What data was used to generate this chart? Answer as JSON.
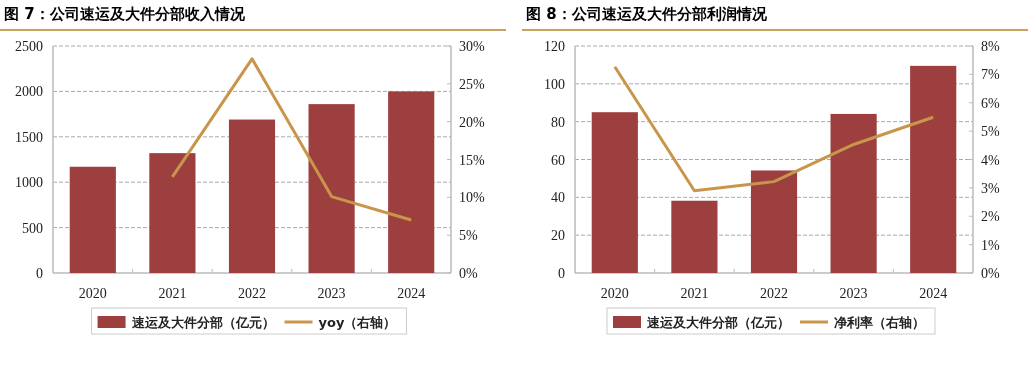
{
  "chart_data": [
    {
      "type": "bar",
      "title": "图 7：公司速运及大件分部收入情况",
      "categories": [
        "2020",
        "2021",
        "2022",
        "2023",
        "2024"
      ],
      "series": [
        {
          "name": "速运及大件分部（亿元）",
          "color": "#9e3f3f",
          "values": [
            1170,
            1320,
            1690,
            1860,
            2000
          ]
        },
        {
          "name": "yoy（右轴）",
          "type": "line",
          "axis": "y2",
          "color": "#c8954a",
          "values": [
            null,
            12.7,
            28.3,
            10.1,
            7.0
          ]
        }
      ],
      "ylim": [
        0,
        2500
      ],
      "yticks": [
        0,
        500,
        1000,
        1500,
        2000,
        2500
      ],
      "y2lim": [
        0,
        30
      ],
      "y2ticks": [
        {
          "value": 0,
          "label": "0%"
        },
        {
          "value": 5,
          "label": "5%"
        },
        {
          "value": 10,
          "label": "10%"
        },
        {
          "value": 15,
          "label": "15%"
        },
        {
          "value": 20,
          "label": "20%"
        },
        {
          "value": 25,
          "label": "25%"
        },
        {
          "value": 30,
          "label": "30%"
        }
      ],
      "grid": "y",
      "legend": "bottom"
    },
    {
      "type": "bar",
      "title": "图 8：公司速运及大件分部利润情况",
      "categories": [
        "2020",
        "2021",
        "2022",
        "2023",
        "2024"
      ],
      "series": [
        {
          "name": "速运及大件分部（亿元）",
          "color": "#9e3f3f",
          "values": [
            85,
            38.2,
            54.2,
            84.1,
            109.5
          ]
        },
        {
          "name": "净利率（右轴）",
          "type": "line",
          "axis": "y2",
          "color": "#c8954a",
          "values": [
            7.27,
            2.9,
            3.22,
            4.53,
            5.49
          ]
        }
      ],
      "ylim": [
        0,
        120
      ],
      "yticks": [
        0,
        20,
        40,
        60,
        80,
        100,
        120
      ],
      "y2lim": [
        0,
        8
      ],
      "y2ticks": [
        {
          "value": 0,
          "label": "0%"
        },
        {
          "value": 1,
          "label": "1%"
        },
        {
          "value": 2,
          "label": "2%"
        },
        {
          "value": 3,
          "label": "3%"
        },
        {
          "value": 4,
          "label": "4%"
        },
        {
          "value": 5,
          "label": "5%"
        },
        {
          "value": 6,
          "label": "6%"
        },
        {
          "value": 7,
          "label": "7%"
        },
        {
          "value": 8,
          "label": "8%"
        }
      ],
      "grid": "y",
      "legend": "bottom"
    }
  ]
}
